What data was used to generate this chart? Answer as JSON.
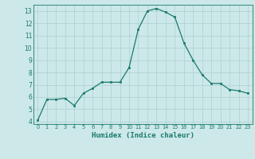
{
  "x": [
    0,
    1,
    2,
    3,
    4,
    5,
    6,
    7,
    8,
    9,
    10,
    11,
    12,
    13,
    14,
    15,
    16,
    17,
    18,
    19,
    20,
    21,
    22,
    23
  ],
  "y": [
    4.1,
    5.8,
    5.8,
    5.9,
    5.3,
    6.3,
    6.7,
    7.2,
    7.2,
    7.2,
    8.4,
    11.5,
    13.0,
    13.2,
    12.9,
    12.5,
    10.4,
    9.0,
    7.8,
    7.1,
    7.1,
    6.6,
    6.5,
    6.3
  ],
  "xlabel": "Humidex (Indice chaleur)",
  "ylim": [
    3.8,
    13.5
  ],
  "xlim": [
    -0.5,
    23.5
  ],
  "yticks": [
    4,
    5,
    6,
    7,
    8,
    9,
    10,
    11,
    12,
    13
  ],
  "xticks": [
    0,
    1,
    2,
    3,
    4,
    5,
    6,
    7,
    8,
    9,
    10,
    11,
    12,
    13,
    14,
    15,
    16,
    17,
    18,
    19,
    20,
    21,
    22,
    23
  ],
  "line_color": "#1a7a6e",
  "marker_color": "#1a7a6e",
  "bg_color": "#cce8e8",
  "grid_color": "#add0d0",
  "axis_color": "#1a7a6e",
  "label_color": "#1a7a6e"
}
